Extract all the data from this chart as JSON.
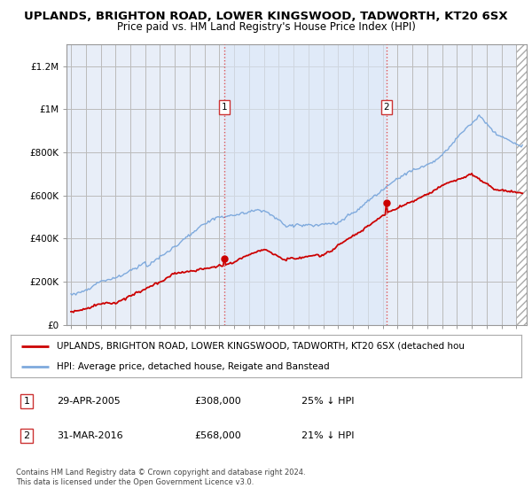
{
  "title_line1": "UPLANDS, BRIGHTON ROAD, LOWER KINGSWOOD, TADWORTH, KT20 6SX",
  "title_line2": "Price paid vs. HM Land Registry's House Price Index (HPI)",
  "ylabel_ticks": [
    "£0",
    "£200K",
    "£400K",
    "£600K",
    "£800K",
    "£1M",
    "£1.2M"
  ],
  "ytick_vals": [
    0,
    200000,
    400000,
    600000,
    800000,
    1000000,
    1200000
  ],
  "ylim": [
    0,
    1300000
  ],
  "xlim_start": 1994.7,
  "xlim_end": 2025.7,
  "bg_color": "#ffffff",
  "plot_bg_color": "#e8eef8",
  "grid_color": "#bbbbbb",
  "hpi_color": "#7faadd",
  "price_color": "#cc0000",
  "sale1_x": 2005.33,
  "sale1_y": 308000,
  "sale2_x": 2016.25,
  "sale2_y": 568000,
  "vline_color": "#dd4444",
  "legend_line1": "UPLANDS, BRIGHTON ROAD, LOWER KINGSWOOD, TADWORTH, KT20 6SX (detached hou",
  "legend_line2": "HPI: Average price, detached house, Reigate and Banstead",
  "footnote": "Contains HM Land Registry data © Crown copyright and database right 2024.\nThis data is licensed under the Open Government Licence v3.0.",
  "title_fontsize": 9.5,
  "subtitle_fontsize": 8.5,
  "highlight_bg": "#dce8f8"
}
